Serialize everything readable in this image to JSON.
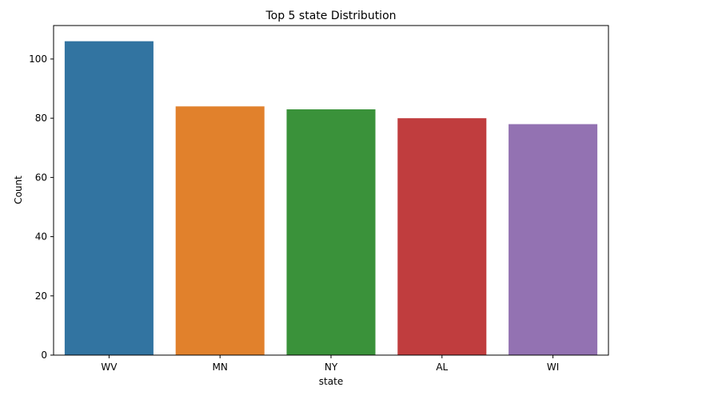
{
  "chart_data": {
    "type": "bar",
    "title": "Top 5 state Distribution",
    "xlabel": "state",
    "ylabel": "Count",
    "categories": [
      "WV",
      "MN",
      "NY",
      "AL",
      "WI"
    ],
    "values": [
      106,
      84,
      83,
      80,
      78
    ],
    "ylim": [
      0,
      111.3
    ],
    "yticks": [
      0,
      20,
      40,
      60,
      80,
      100
    ],
    "colors": [
      "#3274a1",
      "#e1812c",
      "#3a923a",
      "#c03d3e",
      "#9372b2"
    ],
    "grid": false,
    "legend": "none"
  }
}
